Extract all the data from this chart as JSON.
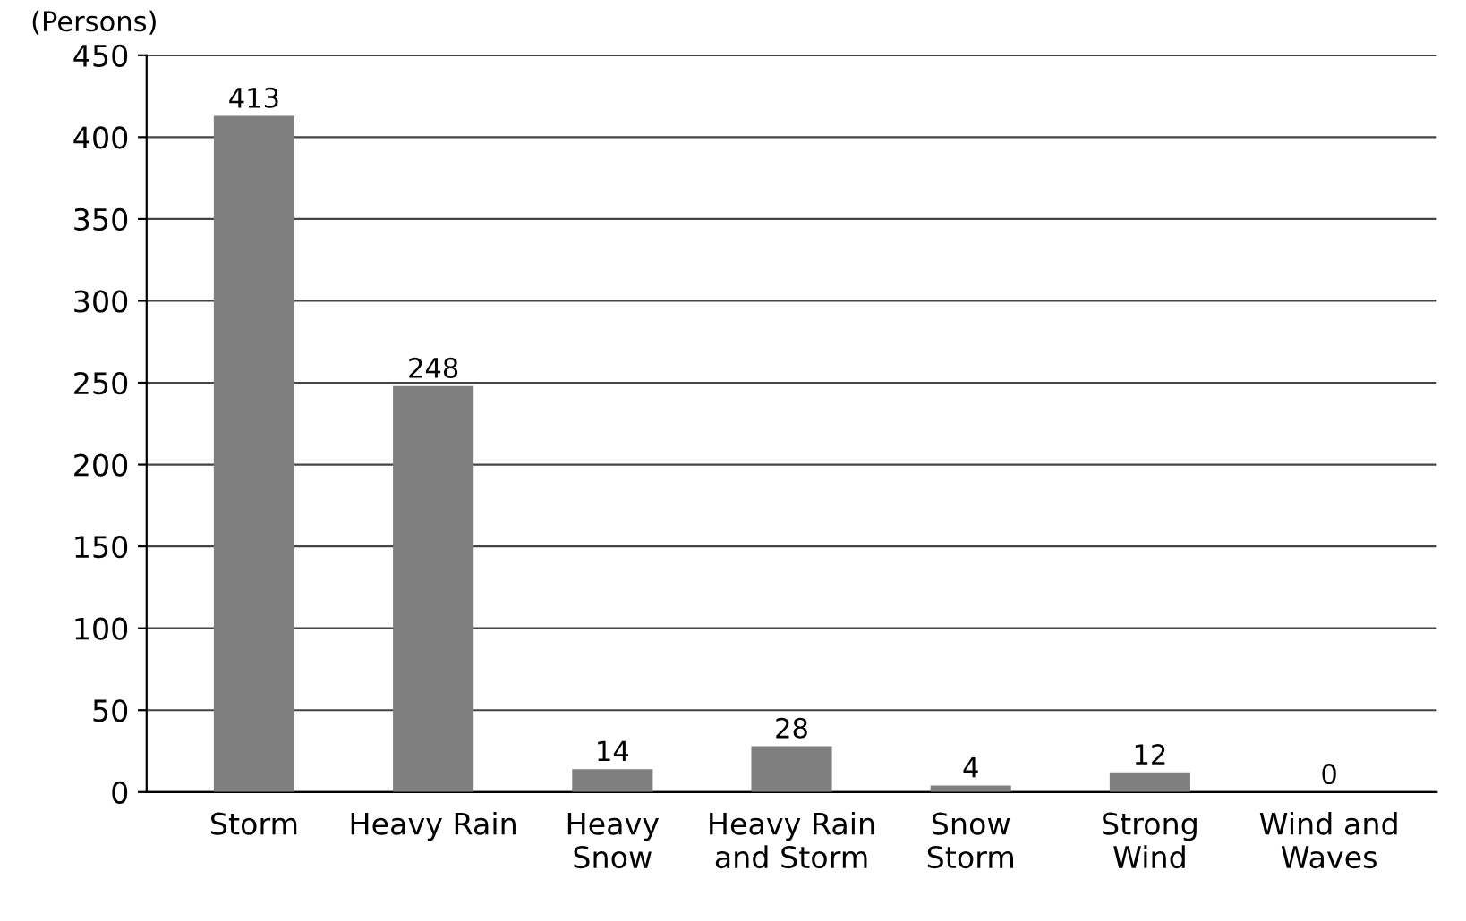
{
  "chart_data": {
    "type": "bar",
    "ylabel": "(Persons)",
    "categories": [
      "Storm",
      "Heavy Rain",
      "Heavy\nSnow",
      "Heavy Rain\nand Storm",
      "Snow\nStorm",
      "Strong\nWind",
      "Wind and\nWaves"
    ],
    "values": [
      413,
      248,
      14,
      28,
      4,
      12,
      0
    ],
    "color": "#7f7f7f",
    "ylim": [
      0,
      450
    ],
    "yticks": [
      0,
      50,
      100,
      150,
      200,
      250,
      300,
      350,
      400,
      450
    ],
    "grid": "y",
    "data_labels": true
  }
}
